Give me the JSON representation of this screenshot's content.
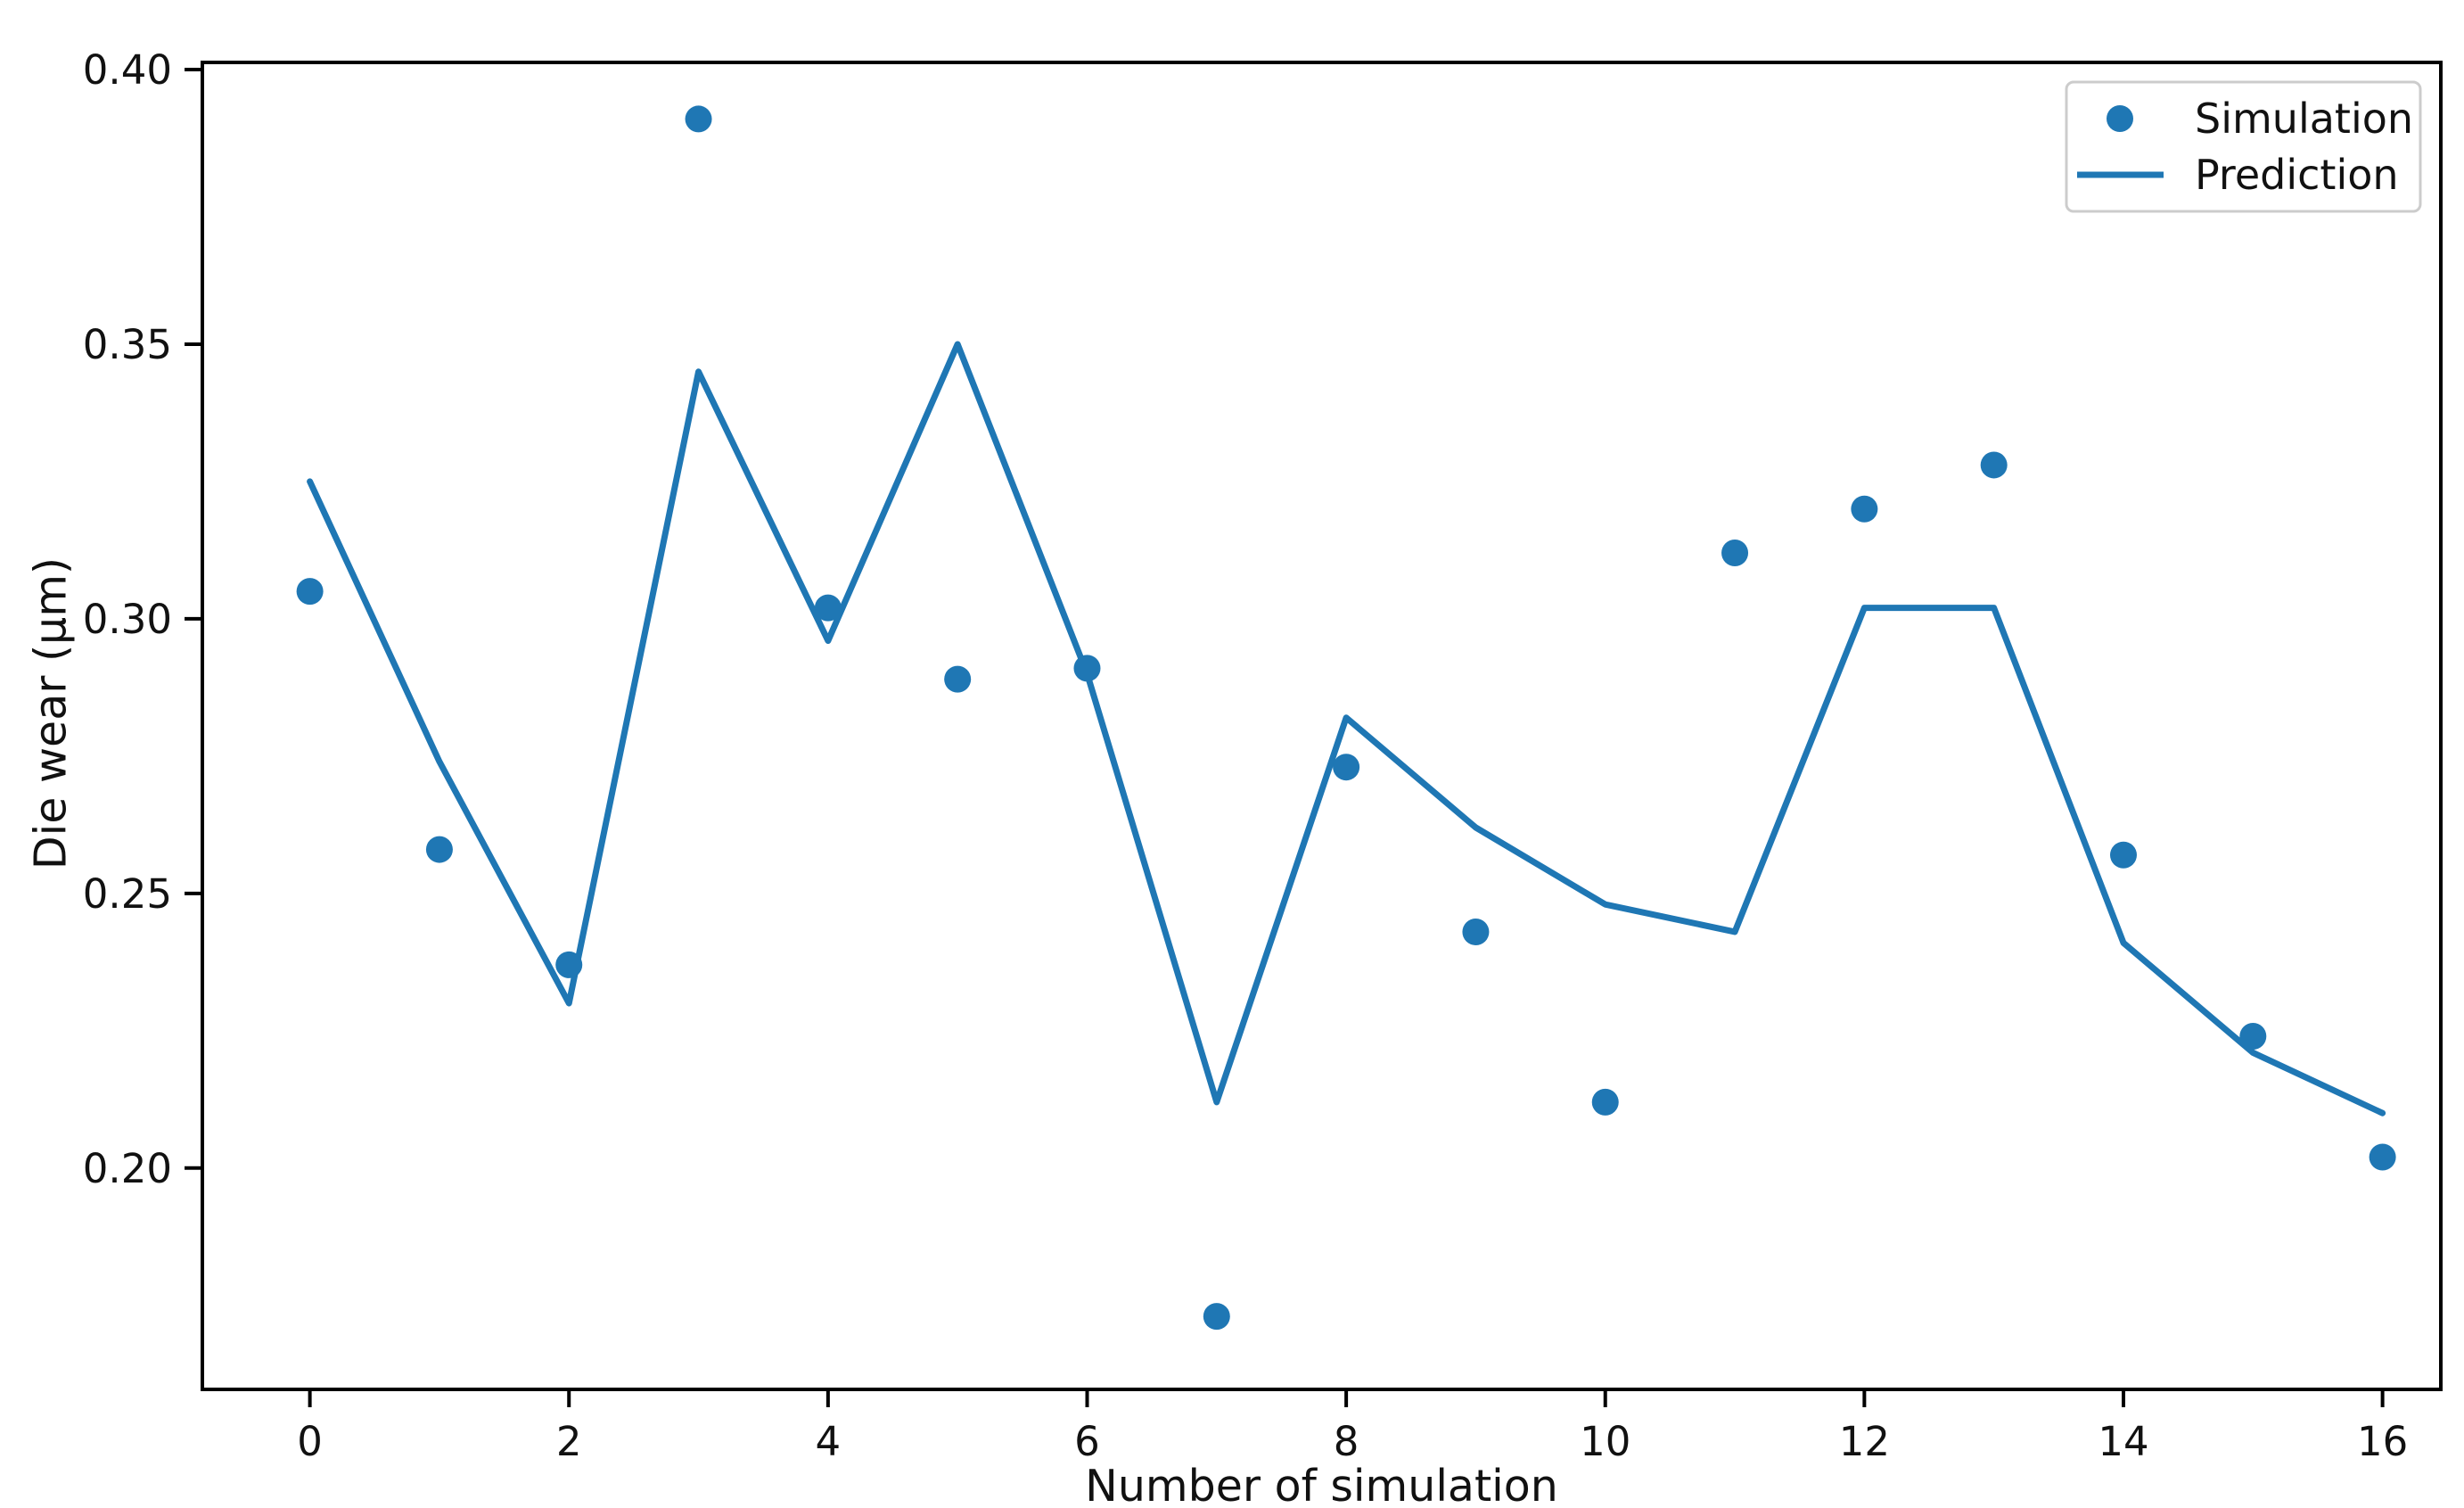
{
  "chart_data": {
    "type": "scatter",
    "title": "",
    "xlabel": "Number of simulation",
    "ylabel": "Die wear (μm)",
    "x": [
      0,
      1,
      2,
      3,
      4,
      5,
      6,
      7,
      8,
      9,
      10,
      11,
      12,
      13,
      14,
      15,
      16
    ],
    "series": [
      {
        "name": "Simulation",
        "mode": "markers",
        "values": [
          0.305,
          0.258,
          0.237,
          0.391,
          0.302,
          0.289,
          0.291,
          0.173,
          0.273,
          0.243,
          0.212,
          0.312,
          0.32,
          0.328,
          0.257,
          0.224,
          0.202
        ]
      },
      {
        "name": "Prediction",
        "mode": "line",
        "values": [
          0.325,
          0.274,
          0.23,
          0.345,
          0.296,
          0.35,
          0.29,
          0.212,
          0.282,
          0.262,
          0.248,
          0.243,
          0.302,
          0.302,
          0.241,
          0.221,
          0.21
        ]
      }
    ],
    "xticks": {
      "values": [
        0,
        2,
        4,
        6,
        8,
        10,
        12,
        14,
        16
      ],
      "labels": [
        "0",
        "2",
        "4",
        "6",
        "8",
        "10",
        "12",
        "14",
        "16"
      ]
    },
    "yticks": {
      "values": [
        0.2,
        0.25,
        0.3,
        0.35,
        0.4
      ],
      "labels": [
        "0.20",
        "0.25",
        "0.30",
        "0.35",
        "0.40"
      ]
    },
    "xlim": [
      -0.83,
      16.45
    ],
    "ylim": [
      0.1597,
      0.4013
    ],
    "grid": false,
    "legend": {
      "position": "upper-right",
      "entries": [
        "Simulation",
        "Prediction"
      ]
    },
    "colors": {
      "accent": "#1f77b4",
      "text": "#111111",
      "spine": "#000000",
      "legend_border": "#cccccc",
      "background": "#ffffff"
    }
  }
}
